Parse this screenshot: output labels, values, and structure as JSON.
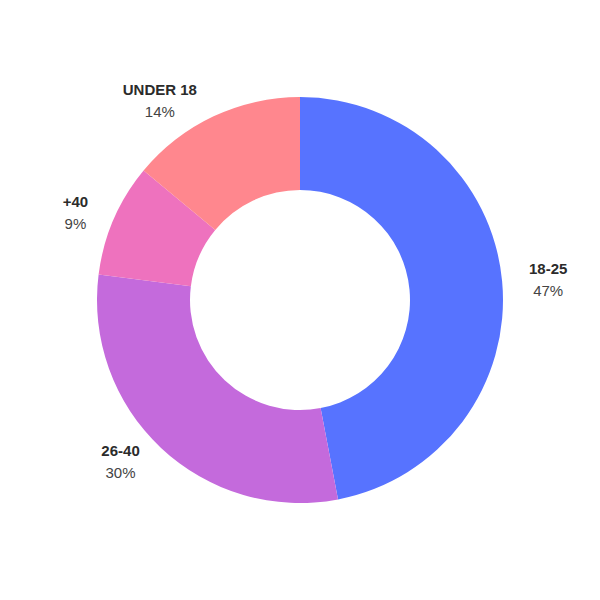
{
  "chart_data": {
    "type": "pie",
    "categories": [
      "18-25",
      "26-40",
      "+40",
      "UNDER 18"
    ],
    "values": [
      47,
      30,
      9,
      14
    ],
    "value_labels": [
      "47%",
      "30%",
      "9%",
      "14%"
    ],
    "colors": [
      "#5773ff",
      "#c46adc",
      "#ee72be",
      "#ff878e"
    ],
    "data_labels": true
  }
}
